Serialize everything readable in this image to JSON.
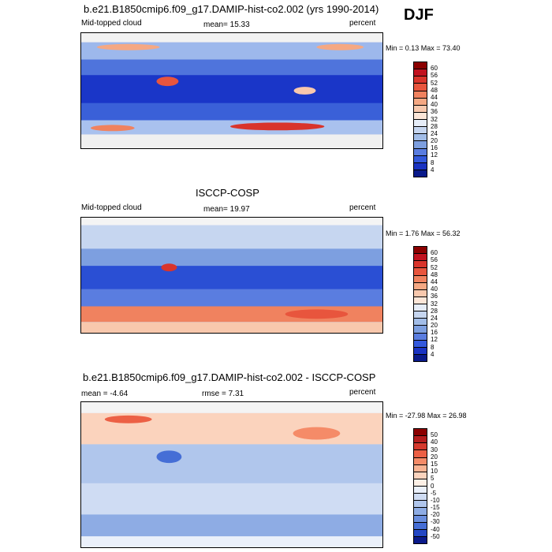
{
  "season": "DJF",
  "panels": [
    {
      "id": "model",
      "title": "b.e21.B1850cmip6.f09_g17.DAMIP-hist-co2.002 (yrs 1990-2014)",
      "variable": "Mid-topped cloud",
      "stat_text": "mean=  15.33",
      "units": "percent",
      "minmax": "Min =   0.13 Max =  73.40",
      "levels": [
        "60",
        "56",
        "52",
        "48",
        "44",
        "40",
        "36",
        "32",
        "28",
        "24",
        "20",
        "16",
        "12",
        "8",
        "4"
      ],
      "colors": [
        "#8b0000",
        "#c1121f",
        "#d9342b",
        "#e8553d",
        "#f0825f",
        "#f5a883",
        "#f8c8ad",
        "#fce6d8",
        "#e6edf8",
        "#c6d6f0",
        "#a2bde8",
        "#7d9fe0",
        "#5a7de0",
        "#3359dc",
        "#1a33c2",
        "#0a1a8a"
      ]
    },
    {
      "id": "obs",
      "title": "ISCCP-COSP",
      "variable": "Mid-topped cloud",
      "stat_text": "mean=  19.97",
      "units": "percent",
      "minmax": "Min =   1.76 Max =  56.32",
      "levels": [
        "60",
        "56",
        "52",
        "48",
        "44",
        "40",
        "36",
        "32",
        "28",
        "24",
        "20",
        "16",
        "12",
        "8",
        "4"
      ],
      "colors": [
        "#8b0000",
        "#c1121f",
        "#d9342b",
        "#e8553d",
        "#f0825f",
        "#f5a883",
        "#f8c8ad",
        "#fce6d8",
        "#e6edf8",
        "#c6d6f0",
        "#a2bde8",
        "#7d9fe0",
        "#5a7de0",
        "#3359dc",
        "#1a33c2",
        "#0a1a8a"
      ]
    },
    {
      "id": "diff",
      "title": "b.e21.B1850cmip6.f09_g17.DAMIP-hist-co2.002 - ISCCP-COSP",
      "variable": "",
      "stat_text": "mean =  -4.64",
      "stat_text2": "rmse =   7.31",
      "units": "percent",
      "minmax": "Min = -27.98 Max =  26.98",
      "levels": [
        "50",
        "40",
        "30",
        "20",
        "15",
        "10",
        "5",
        "0",
        "-5",
        "-10",
        "-15",
        "-20",
        "-30",
        "-40",
        "-50"
      ],
      "colors": [
        "#8b0000",
        "#b51d1d",
        "#d63a2e",
        "#ec6045",
        "#f58b68",
        "#f9b393",
        "#fbd3bd",
        "#fdf0e6",
        "#eaf0fa",
        "#cfdcf3",
        "#b0c6ec",
        "#8eace4",
        "#6a8ede",
        "#456ed6",
        "#2347c4",
        "#0a1a8a"
      ]
    }
  ],
  "chart_data": [
    {
      "type": "heatmap",
      "title": "b.e21.B1850cmip6.f09_g17.DAMIP-hist-co2.002 (yrs 1990-2014)",
      "variable": "Mid-topped cloud",
      "units": "percent",
      "season": "DJF",
      "mean": 15.33,
      "min": 0.13,
      "max": 73.4,
      "contour_levels": [
        4,
        8,
        12,
        16,
        20,
        24,
        28,
        32,
        36,
        40,
        44,
        48,
        52,
        56,
        60
      ]
    },
    {
      "type": "heatmap",
      "title": "ISCCP-COSP",
      "variable": "Mid-topped cloud",
      "units": "percent",
      "season": "DJF",
      "mean": 19.97,
      "min": 1.76,
      "max": 56.32,
      "contour_levels": [
        4,
        8,
        12,
        16,
        20,
        24,
        28,
        32,
        36,
        40,
        44,
        48,
        52,
        56,
        60
      ]
    },
    {
      "type": "heatmap",
      "title": "b.e21.B1850cmip6.f09_g17.DAMIP-hist-co2.002 - ISCCP-COSP",
      "units": "percent",
      "season": "DJF",
      "mean": -4.64,
      "rmse": 7.31,
      "min": -27.98,
      "max": 26.98,
      "contour_levels": [
        -50,
        -40,
        -30,
        -20,
        -15,
        -10,
        -5,
        0,
        5,
        10,
        15,
        20,
        30,
        40,
        50
      ]
    }
  ]
}
